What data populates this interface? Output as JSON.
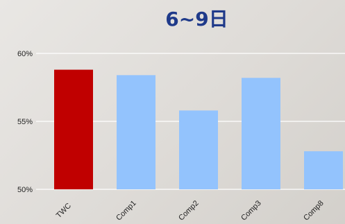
{
  "chart_data": {
    "type": "bar",
    "title": "6~9日",
    "categories": [
      "TWC",
      "Comp1",
      "Comp2",
      "Comp3",
      "Comp8"
    ],
    "values": [
      58.8,
      58.4,
      55.8,
      58.2,
      52.8
    ],
    "ylim": [
      50,
      60
    ],
    "yticks": [
      50,
      55,
      60
    ],
    "ytick_labels": [
      "50%",
      "55%",
      "60%"
    ],
    "xlabel": "",
    "ylabel": "",
    "grid": true,
    "colors": [
      "#c00000",
      "#93c3fd",
      "#93c3fd",
      "#93c3fd",
      "#93c3fd"
    ]
  }
}
